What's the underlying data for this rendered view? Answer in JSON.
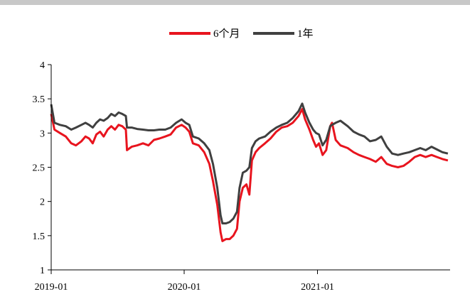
{
  "chart_data": {
    "type": "line",
    "title": "",
    "xlabel": "",
    "ylabel": "",
    "x_ticks": [
      "2019-01",
      "2020-01",
      "2021-01"
    ],
    "x_range": [
      "2019-01",
      "2021-12"
    ],
    "ylim": [
      1,
      4
    ],
    "y_ticks": [
      "1",
      "1.5",
      "2",
      "2.5",
      "3",
      "3.5",
      "4"
    ],
    "grid": false,
    "legend_position": "top-center",
    "series": [
      {
        "name": "6个月",
        "color": "#e8141e",
        "points": [
          [
            "2019-01",
            3.28
          ],
          [
            "2019-01-10",
            3.05
          ],
          [
            "2019-01-25",
            3.0
          ],
          [
            "2019-02-10",
            2.95
          ],
          [
            "2019-02-25",
            2.85
          ],
          [
            "2019-03-10",
            2.82
          ],
          [
            "2019-03-25",
            2.88
          ],
          [
            "2019-04-05",
            2.95
          ],
          [
            "2019-04-15",
            2.92
          ],
          [
            "2019-04-25",
            2.85
          ],
          [
            "2019-05-05",
            2.98
          ],
          [
            "2019-05-15",
            3.02
          ],
          [
            "2019-05-25",
            2.95
          ],
          [
            "2019-06-05",
            3.05
          ],
          [
            "2019-06-15",
            3.1
          ],
          [
            "2019-06-25",
            3.05
          ],
          [
            "2019-07-05",
            3.12
          ],
          [
            "2019-07-15",
            3.1
          ],
          [
            "2019-07-25",
            3.05
          ],
          [
            "2019-07-28",
            2.75
          ],
          [
            "2019-08-10",
            2.8
          ],
          [
            "2019-08-25",
            2.82
          ],
          [
            "2019-09-10",
            2.85
          ],
          [
            "2019-09-25",
            2.82
          ],
          [
            "2019-10-10",
            2.9
          ],
          [
            "2019-10-25",
            2.92
          ],
          [
            "2019-11-10",
            2.95
          ],
          [
            "2019-11-25",
            2.98
          ],
          [
            "2019-12-10",
            3.08
          ],
          [
            "2019-12-25",
            3.12
          ],
          [
            "2020-01-05",
            3.08
          ],
          [
            "2020-01-15",
            3.02
          ],
          [
            "2020-01-25",
            2.85
          ],
          [
            "2020-02-10",
            2.82
          ],
          [
            "2020-02-25",
            2.72
          ],
          [
            "2020-03-10",
            2.55
          ],
          [
            "2020-03-20",
            2.3
          ],
          [
            "2020-04-01",
            1.95
          ],
          [
            "2020-04-10",
            1.55
          ],
          [
            "2020-04-15",
            1.42
          ],
          [
            "2020-04-25",
            1.45
          ],
          [
            "2020-05-05",
            1.45
          ],
          [
            "2020-05-15",
            1.5
          ],
          [
            "2020-05-25",
            1.6
          ],
          [
            "2020-06-01",
            2.0
          ],
          [
            "2020-06-10",
            2.2
          ],
          [
            "2020-06-20",
            2.25
          ],
          [
            "2020-06-28",
            2.1
          ],
          [
            "2020-07-05",
            2.6
          ],
          [
            "2020-07-15",
            2.72
          ],
          [
            "2020-07-25",
            2.78
          ],
          [
            "2020-08-10",
            2.85
          ],
          [
            "2020-08-25",
            2.92
          ],
          [
            "2020-09-10",
            3.02
          ],
          [
            "2020-09-25",
            3.08
          ],
          [
            "2020-10-10",
            3.1
          ],
          [
            "2020-10-25",
            3.15
          ],
          [
            "2020-11-10",
            3.25
          ],
          [
            "2020-11-20",
            3.35
          ],
          [
            "2020-11-28",
            3.2
          ],
          [
            "2020-12-10",
            3.05
          ],
          [
            "2020-12-20",
            2.9
          ],
          [
            "2020-12-28",
            2.8
          ],
          [
            "2021-01-05",
            2.85
          ],
          [
            "2021-01-15",
            2.68
          ],
          [
            "2021-01-25",
            2.75
          ],
          [
            "2021-02-05",
            3.1
          ],
          [
            "2021-02-10",
            3.15
          ],
          [
            "2021-02-20",
            2.9
          ],
          [
            "2021-03-05",
            2.82
          ],
          [
            "2021-03-25",
            2.78
          ],
          [
            "2021-04-10",
            2.72
          ],
          [
            "2021-04-25",
            2.68
          ],
          [
            "2021-05-10",
            2.65
          ],
          [
            "2021-05-25",
            2.62
          ],
          [
            "2021-06-10",
            2.58
          ],
          [
            "2021-06-25",
            2.65
          ],
          [
            "2021-07-10",
            2.55
          ],
          [
            "2021-07-25",
            2.52
          ],
          [
            "2021-08-10",
            2.5
          ],
          [
            "2021-08-25",
            2.52
          ],
          [
            "2021-09-10",
            2.58
          ],
          [
            "2021-09-25",
            2.65
          ],
          [
            "2021-10-10",
            2.68
          ],
          [
            "2021-10-25",
            2.65
          ],
          [
            "2021-11-10",
            2.68
          ],
          [
            "2021-11-25",
            2.65
          ],
          [
            "2021-12-10",
            2.62
          ],
          [
            "2021-12-25",
            2.6
          ]
        ]
      },
      {
        "name": "1年",
        "color": "#404040",
        "points": [
          [
            "2019-01",
            3.42
          ],
          [
            "2019-01-10",
            3.15
          ],
          [
            "2019-01-25",
            3.12
          ],
          [
            "2019-02-10",
            3.1
          ],
          [
            "2019-02-25",
            3.05
          ],
          [
            "2019-03-10",
            3.08
          ],
          [
            "2019-03-25",
            3.12
          ],
          [
            "2019-04-05",
            3.15
          ],
          [
            "2019-04-15",
            3.12
          ],
          [
            "2019-04-25",
            3.08
          ],
          [
            "2019-05-05",
            3.15
          ],
          [
            "2019-05-15",
            3.2
          ],
          [
            "2019-05-25",
            3.18
          ],
          [
            "2019-06-05",
            3.22
          ],
          [
            "2019-06-15",
            3.28
          ],
          [
            "2019-06-25",
            3.25
          ],
          [
            "2019-07-05",
            3.3
          ],
          [
            "2019-07-15",
            3.28
          ],
          [
            "2019-07-25",
            3.25
          ],
          [
            "2019-07-28",
            3.08
          ],
          [
            "2019-08-10",
            3.08
          ],
          [
            "2019-08-25",
            3.06
          ],
          [
            "2019-09-10",
            3.05
          ],
          [
            "2019-09-25",
            3.04
          ],
          [
            "2019-10-10",
            3.04
          ],
          [
            "2019-10-25",
            3.05
          ],
          [
            "2019-11-10",
            3.05
          ],
          [
            "2019-11-25",
            3.08
          ],
          [
            "2019-12-10",
            3.15
          ],
          [
            "2019-12-25",
            3.2
          ],
          [
            "2020-01-05",
            3.15
          ],
          [
            "2020-01-15",
            3.12
          ],
          [
            "2020-01-25",
            2.95
          ],
          [
            "2020-02-10",
            2.92
          ],
          [
            "2020-02-25",
            2.85
          ],
          [
            "2020-03-10",
            2.75
          ],
          [
            "2020-03-20",
            2.55
          ],
          [
            "2020-04-01",
            2.2
          ],
          [
            "2020-04-10",
            1.8
          ],
          [
            "2020-04-15",
            1.68
          ],
          [
            "2020-04-25",
            1.68
          ],
          [
            "2020-05-05",
            1.7
          ],
          [
            "2020-05-15",
            1.75
          ],
          [
            "2020-05-25",
            1.85
          ],
          [
            "2020-06-01",
            2.2
          ],
          [
            "2020-06-10",
            2.42
          ],
          [
            "2020-06-20",
            2.45
          ],
          [
            "2020-06-28",
            2.5
          ],
          [
            "2020-07-05",
            2.78
          ],
          [
            "2020-07-15",
            2.88
          ],
          [
            "2020-07-25",
            2.92
          ],
          [
            "2020-08-10",
            2.95
          ],
          [
            "2020-08-25",
            3.02
          ],
          [
            "2020-09-10",
            3.08
          ],
          [
            "2020-09-25",
            3.12
          ],
          [
            "2020-10-10",
            3.15
          ],
          [
            "2020-10-25",
            3.22
          ],
          [
            "2020-11-10",
            3.32
          ],
          [
            "2020-11-20",
            3.43
          ],
          [
            "2020-11-28",
            3.3
          ],
          [
            "2020-12-10",
            3.15
          ],
          [
            "2020-12-20",
            3.05
          ],
          [
            "2020-12-28",
            3.0
          ],
          [
            "2021-01-05",
            2.98
          ],
          [
            "2021-01-15",
            2.82
          ],
          [
            "2021-01-25",
            2.9
          ],
          [
            "2021-02-05",
            3.1
          ],
          [
            "2021-02-10",
            3.12
          ],
          [
            "2021-02-20",
            3.15
          ],
          [
            "2021-03-05",
            3.18
          ],
          [
            "2021-03-25",
            3.1
          ],
          [
            "2021-04-10",
            3.02
          ],
          [
            "2021-04-25",
            2.98
          ],
          [
            "2021-05-10",
            2.95
          ],
          [
            "2021-05-25",
            2.88
          ],
          [
            "2021-06-10",
            2.9
          ],
          [
            "2021-06-25",
            2.95
          ],
          [
            "2021-07-10",
            2.8
          ],
          [
            "2021-07-25",
            2.7
          ],
          [
            "2021-08-10",
            2.68
          ],
          [
            "2021-08-25",
            2.7
          ],
          [
            "2021-09-10",
            2.72
          ],
          [
            "2021-09-25",
            2.75
          ],
          [
            "2021-10-10",
            2.78
          ],
          [
            "2021-10-25",
            2.75
          ],
          [
            "2021-11-10",
            2.8
          ],
          [
            "2021-11-25",
            2.76
          ],
          [
            "2021-12-10",
            2.72
          ],
          [
            "2021-12-25",
            2.7
          ]
        ]
      }
    ]
  }
}
